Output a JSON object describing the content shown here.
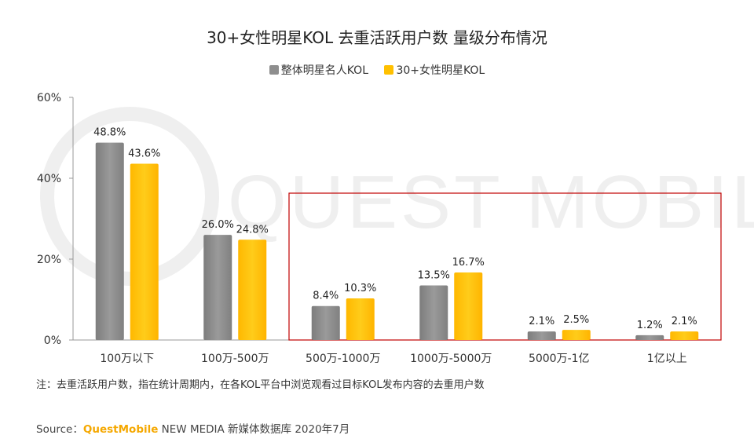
{
  "colors": {
    "series_gray": "#8e8e8e",
    "series_gold": "#ffc000",
    "highlight_box": "#c00000",
    "axis": "#999999",
    "watermark": "#efefef"
  },
  "watermark_text": "QUEST MOBILE",
  "note": "注：去重活跃用户数，指在统计周期内，在各KOL平台中浏览观看过目标KOL发布内容的去重用户数",
  "source": {
    "prefix": "Source：",
    "brand": "QuestMobile",
    "rest": " NEW MEDIA 新媒体数据库 2020年7月"
  },
  "chart_data": {
    "type": "bar",
    "title": "30+女性明星KOL 去重活跃用户数 量级分布情况",
    "categories": [
      "100万以下",
      "100万-500万",
      "500万-1000万",
      "1000万-5000万",
      "5000万-1亿",
      "1亿以上"
    ],
    "series": [
      {
        "name": "整体明星名人KOL",
        "color": "#8e8e8e",
        "values": [
          48.8,
          26.0,
          8.4,
          13.5,
          2.1,
          1.2
        ],
        "labels": [
          "48.8%",
          "26.0%",
          "8.4%",
          "13.5%",
          "2.1%",
          "1.2%"
        ]
      },
      {
        "name": "30+女性明星KOL",
        "color": "#ffc000",
        "values": [
          43.6,
          24.8,
          10.3,
          16.7,
          2.5,
          2.1
        ],
        "labels": [
          "43.6%",
          "24.8%",
          "10.3%",
          "16.7%",
          "2.5%",
          "2.1%"
        ]
      }
    ],
    "ylim": [
      0,
      60
    ],
    "yticks": [
      0,
      20,
      40,
      60
    ],
    "ytick_labels": [
      "0%",
      "20%",
      "40%",
      "60%"
    ],
    "xlabel": "",
    "ylabel": "",
    "grid": false,
    "legend_position": "top-center",
    "highlight_range": [
      "500万-1000万",
      "1亿以上"
    ]
  }
}
